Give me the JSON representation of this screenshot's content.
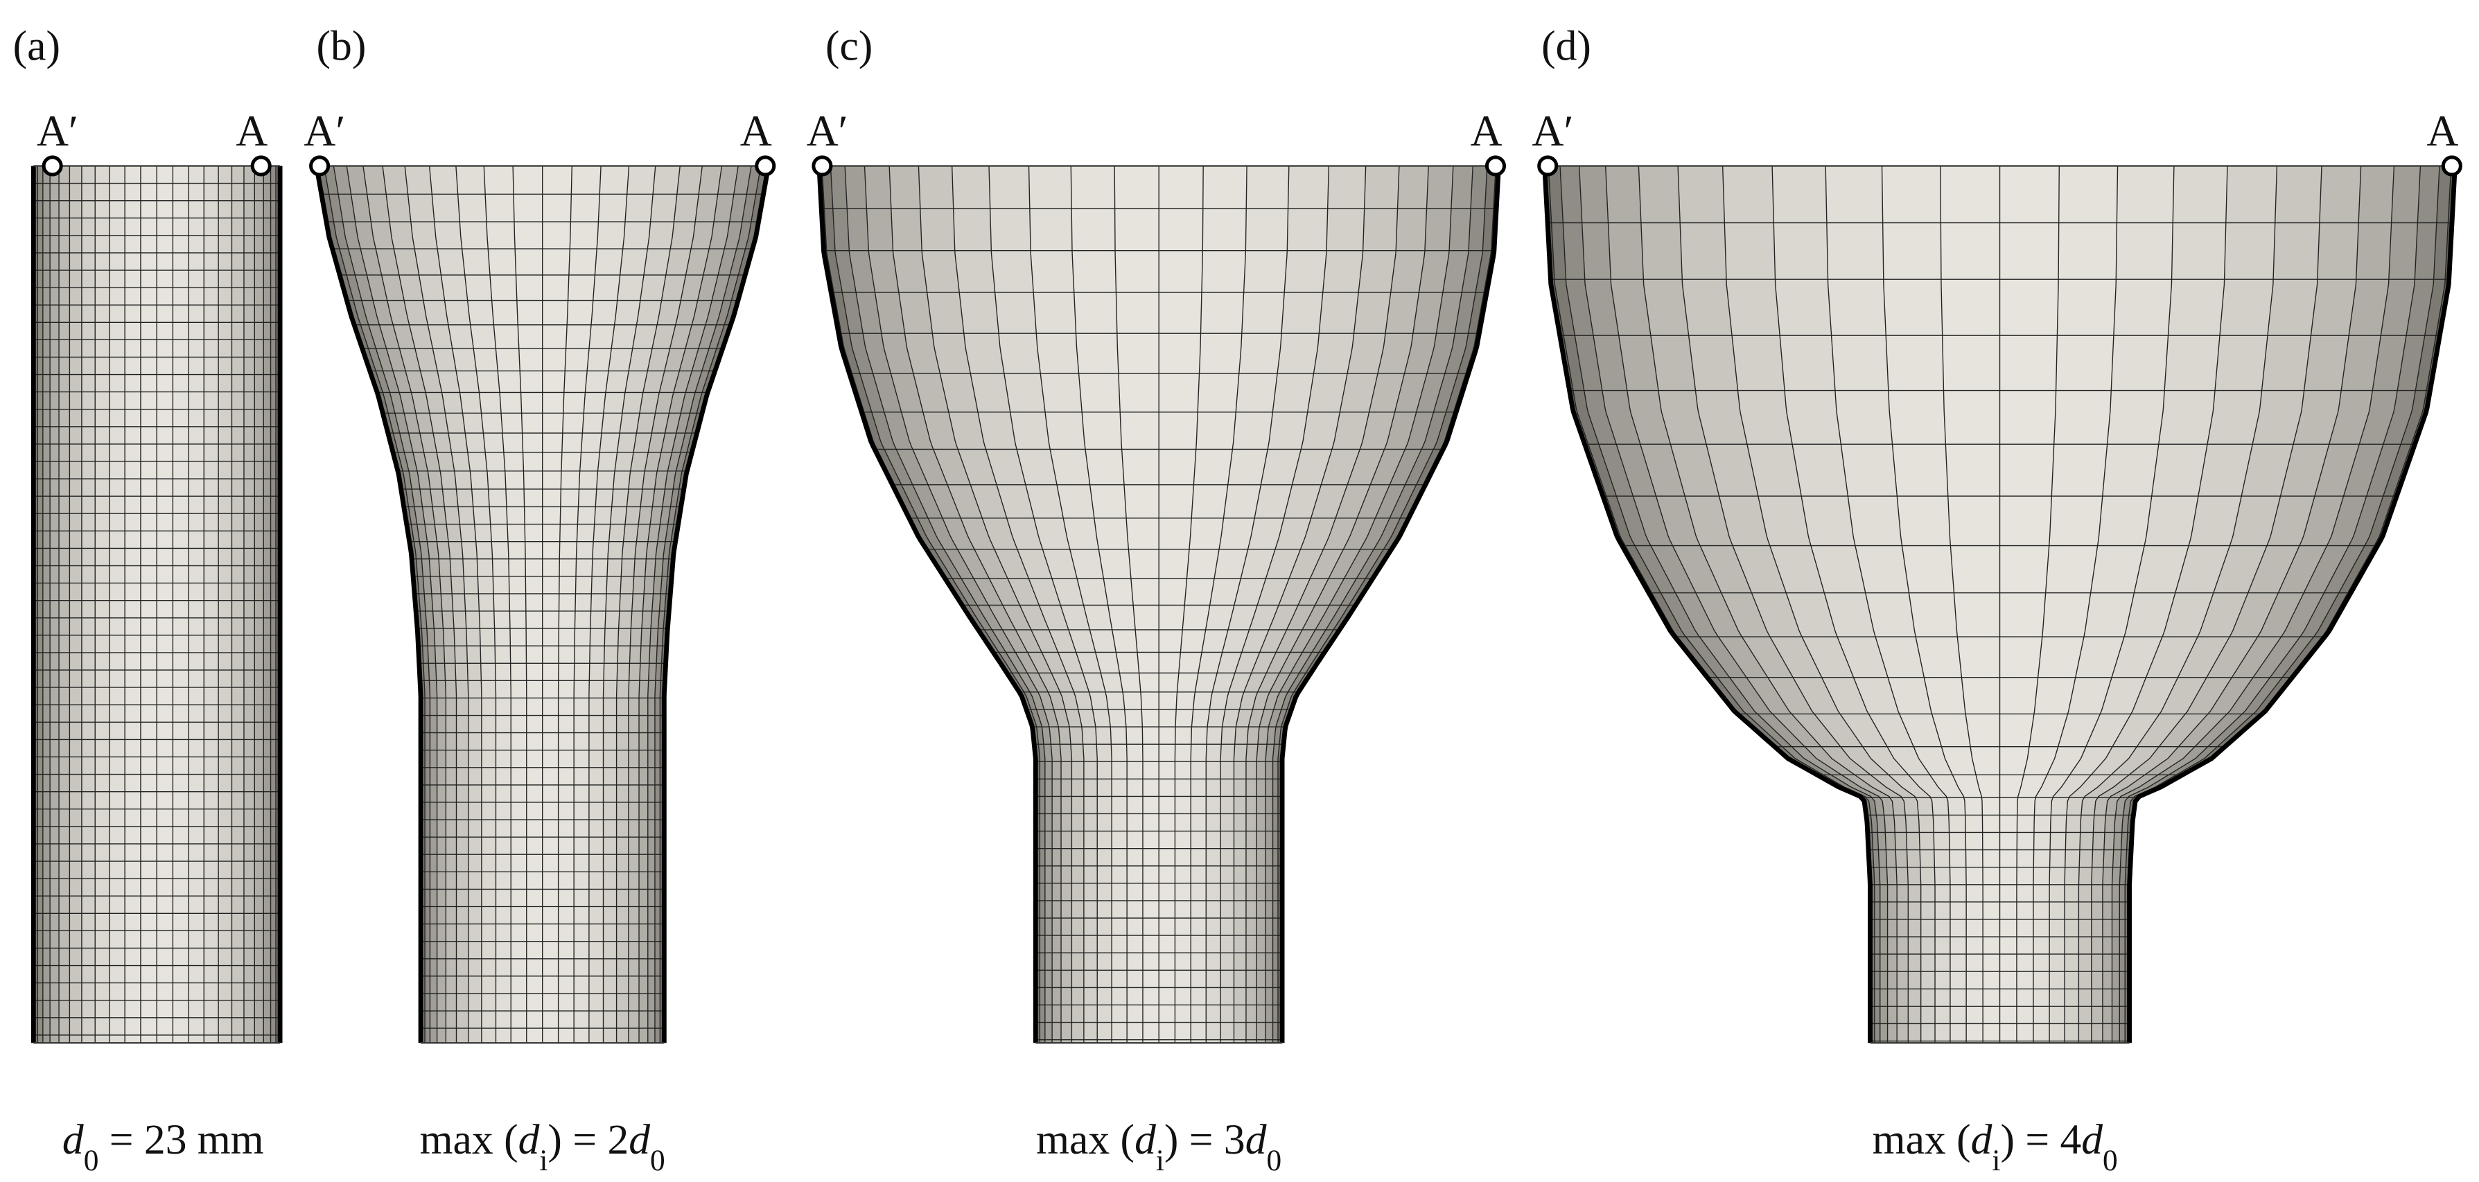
{
  "panels": [
    {
      "label": "(a)",
      "left_point": "A′",
      "right_point": "A",
      "caption": [
        {
          "text": "d",
          "style": "italic"
        },
        {
          "text": "0",
          "style": "sub"
        },
        {
          "text": " = 23 mm",
          "style": "normal"
        }
      ]
    },
    {
      "label": "(b)",
      "left_point": "A′",
      "right_point": "A",
      "caption": [
        {
          "text": "max (",
          "style": "normal"
        },
        {
          "text": "d",
          "style": "italic"
        },
        {
          "text": "i",
          "style": "sub"
        },
        {
          "text": ") = 2",
          "style": "normal"
        },
        {
          "text": "d",
          "style": "italic"
        },
        {
          "text": "0",
          "style": "sub"
        }
      ]
    },
    {
      "label": "(c)",
      "left_point": "A′",
      "right_point": "A",
      "caption": [
        {
          "text": "max (",
          "style": "normal"
        },
        {
          "text": "d",
          "style": "italic"
        },
        {
          "text": "i",
          "style": "sub"
        },
        {
          "text": ") = 3",
          "style": "normal"
        },
        {
          "text": "d",
          "style": "italic"
        },
        {
          "text": "0",
          "style": "sub"
        }
      ]
    },
    {
      "label": "(d)",
      "left_point": "A′",
      "right_point": "A",
      "caption": [
        {
          "text": "max (",
          "style": "normal"
        },
        {
          "text": "d",
          "style": "italic"
        },
        {
          "text": "i",
          "style": "sub"
        },
        {
          "text": ") = 4",
          "style": "normal"
        },
        {
          "text": "d",
          "style": "italic"
        },
        {
          "text": "0",
          "style": "sub"
        }
      ]
    }
  ]
}
